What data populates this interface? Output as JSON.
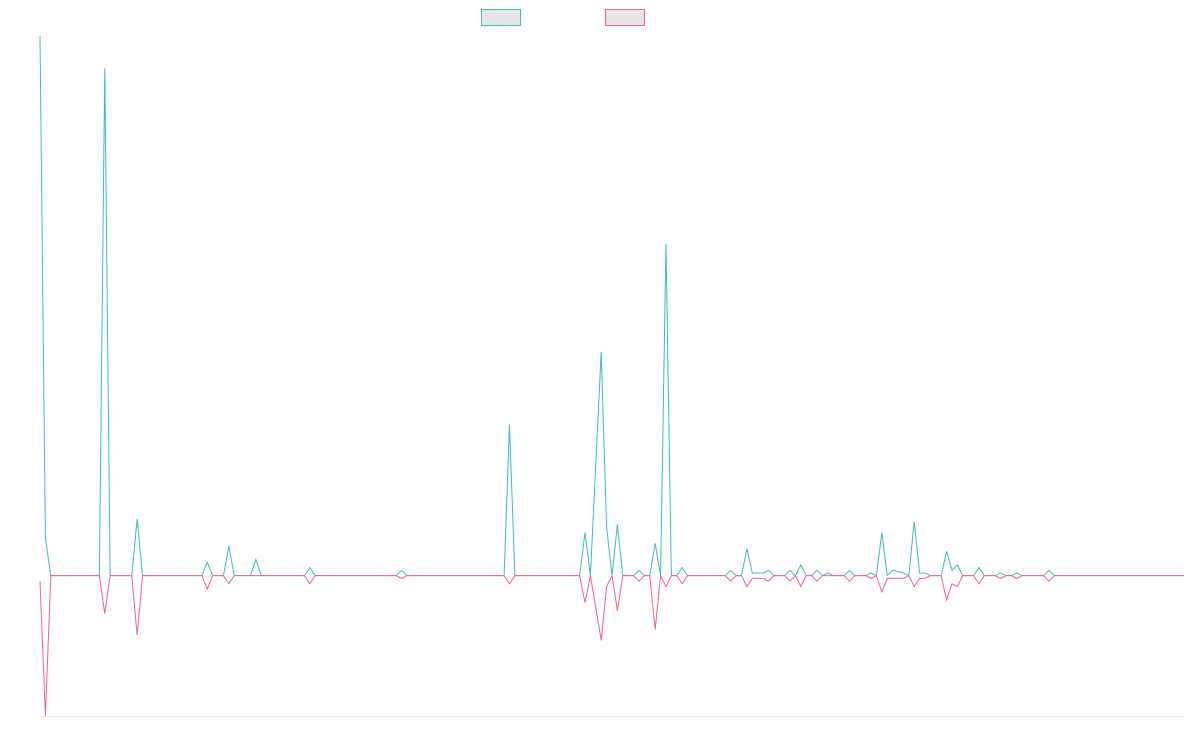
{
  "chart_data": {
    "type": "line",
    "title": "",
    "xlabel": "",
    "ylabel": "",
    "grid": false,
    "legend": "top-center",
    "x_count": 213,
    "ylim": [
      -26,
      100
    ],
    "zero_line": true,
    "series": [
      {
        "color": "#3dbdb8",
        "legend_fill": "#e6e6e6",
        "points": [
          [
            0,
            100
          ],
          [
            1,
            7
          ],
          [
            2,
            0
          ],
          [
            11,
            0
          ],
          [
            12,
            94
          ],
          [
            13,
            0
          ],
          [
            17,
            0
          ],
          [
            18,
            10.5
          ],
          [
            19,
            0
          ],
          [
            30,
            0
          ],
          [
            31,
            2.5
          ],
          [
            32,
            0
          ],
          [
            34,
            0
          ],
          [
            35,
            5.5
          ],
          [
            36,
            0
          ],
          [
            39,
            0
          ],
          [
            40,
            3
          ],
          [
            41,
            0
          ],
          [
            49,
            0
          ],
          [
            50,
            1.5
          ],
          [
            51,
            0
          ],
          [
            66,
            0
          ],
          [
            67,
            1
          ],
          [
            68,
            0
          ],
          [
            86,
            0
          ],
          [
            87,
            28
          ],
          [
            88,
            0
          ],
          [
            100,
            0
          ],
          [
            101,
            8
          ],
          [
            102,
            0
          ],
          [
            104,
            41.5
          ],
          [
            105,
            9
          ],
          [
            106,
            0
          ],
          [
            107,
            9.5
          ],
          [
            108,
            0
          ],
          [
            110,
            0
          ],
          [
            111,
            1
          ],
          [
            112,
            0
          ],
          [
            113,
            0
          ],
          [
            114,
            6
          ],
          [
            115,
            0
          ],
          [
            116,
            61.5
          ],
          [
            117,
            0
          ],
          [
            118,
            0
          ],
          [
            119,
            1.5
          ],
          [
            120,
            0
          ],
          [
            127,
            0
          ],
          [
            128,
            1
          ],
          [
            129,
            0
          ],
          [
            130,
            0
          ],
          [
            131,
            5
          ],
          [
            132,
            0.5
          ],
          [
            134,
            0.5
          ],
          [
            135,
            1
          ],
          [
            136,
            0
          ],
          [
            138,
            0
          ],
          [
            139,
            1
          ],
          [
            140,
            0
          ],
          [
            141,
            2
          ],
          [
            142,
            0
          ],
          [
            143,
            0
          ],
          [
            144,
            1
          ],
          [
            145,
            0
          ],
          [
            146,
            0.5
          ],
          [
            147,
            0
          ],
          [
            149,
            0
          ],
          [
            150,
            1
          ],
          [
            151,
            0
          ],
          [
            153,
            0
          ],
          [
            154,
            0.5
          ],
          [
            155,
            0
          ],
          [
            156,
            8
          ],
          [
            157,
            0
          ],
          [
            158,
            1
          ],
          [
            160,
            0.5
          ],
          [
            161,
            0
          ],
          [
            162,
            10
          ],
          [
            163,
            0.5
          ],
          [
            164,
            0.5
          ],
          [
            165,
            0
          ],
          [
            167,
            0
          ],
          [
            168,
            4.5
          ],
          [
            169,
            1
          ],
          [
            170,
            2
          ],
          [
            171,
            0
          ],
          [
            173,
            0
          ],
          [
            174,
            1.5
          ],
          [
            175,
            0
          ],
          [
            177,
            0
          ],
          [
            178,
            0.5
          ],
          [
            179,
            0
          ],
          [
            180,
            0
          ],
          [
            181,
            0.5
          ],
          [
            182,
            0
          ],
          [
            186,
            0
          ],
          [
            187,
            1
          ],
          [
            188,
            0
          ],
          [
            212,
            0
          ]
        ]
      },
      {
        "color": "#f26389",
        "legend_fill": "#e6e6e6",
        "points": [
          [
            0,
            -1
          ],
          [
            1,
            -26
          ],
          [
            2,
            0
          ],
          [
            11,
            0
          ],
          [
            12,
            -7
          ],
          [
            13,
            0
          ],
          [
            17,
            0
          ],
          [
            18,
            -11
          ],
          [
            19,
            0
          ],
          [
            30,
            0
          ],
          [
            31,
            -2.5
          ],
          [
            32,
            0
          ],
          [
            34,
            0
          ],
          [
            35,
            -1.5
          ],
          [
            36,
            0
          ],
          [
            49,
            0
          ],
          [
            50,
            -1.5
          ],
          [
            51,
            0
          ],
          [
            66,
            0
          ],
          [
            67,
            -0.5
          ],
          [
            68,
            0
          ],
          [
            86,
            0
          ],
          [
            87,
            -1.5
          ],
          [
            88,
            0
          ],
          [
            100,
            0
          ],
          [
            101,
            -5
          ],
          [
            102,
            0
          ],
          [
            104,
            -12
          ],
          [
            105,
            -2
          ],
          [
            106,
            0
          ],
          [
            107,
            -6.5
          ],
          [
            108,
            0
          ],
          [
            110,
            0
          ],
          [
            111,
            -1
          ],
          [
            112,
            0
          ],
          [
            113,
            0
          ],
          [
            114,
            -10
          ],
          [
            115,
            0
          ],
          [
            116,
            -2
          ],
          [
            117,
            0
          ],
          [
            118,
            0
          ],
          [
            119,
            -1.5
          ],
          [
            120,
            0
          ],
          [
            127,
            0
          ],
          [
            128,
            -1
          ],
          [
            129,
            0
          ],
          [
            130,
            0
          ],
          [
            131,
            -2
          ],
          [
            132,
            -0.5
          ],
          [
            134,
            -0.5
          ],
          [
            135,
            -1
          ],
          [
            136,
            0
          ],
          [
            138,
            0
          ],
          [
            139,
            -1
          ],
          [
            140,
            0
          ],
          [
            141,
            -2
          ],
          [
            142,
            0
          ],
          [
            143,
            0
          ],
          [
            144,
            -1
          ],
          [
            145,
            0
          ],
          [
            146,
            0
          ],
          [
            149,
            0
          ],
          [
            150,
            -1
          ],
          [
            151,
            0
          ],
          [
            153,
            0
          ],
          [
            154,
            -0.5
          ],
          [
            155,
            0
          ],
          [
            156,
            -3
          ],
          [
            157,
            -0.5
          ],
          [
            158,
            -0.5
          ],
          [
            160,
            -0.5
          ],
          [
            161,
            0
          ],
          [
            162,
            -2
          ],
          [
            163,
            -0.5
          ],
          [
            164,
            -0.5
          ],
          [
            165,
            0
          ],
          [
            167,
            0
          ],
          [
            168,
            -4.5
          ],
          [
            169,
            -1.5
          ],
          [
            170,
            -2
          ],
          [
            171,
            0
          ],
          [
            173,
            0
          ],
          [
            174,
            -1.5
          ],
          [
            175,
            0
          ],
          [
            177,
            0
          ],
          [
            178,
            -0.5
          ],
          [
            179,
            0
          ],
          [
            180,
            0
          ],
          [
            181,
            -0.5
          ],
          [
            182,
            0
          ],
          [
            186,
            0
          ],
          [
            187,
            -1
          ],
          [
            188,
            0
          ],
          [
            212,
            0
          ]
        ]
      }
    ]
  }
}
